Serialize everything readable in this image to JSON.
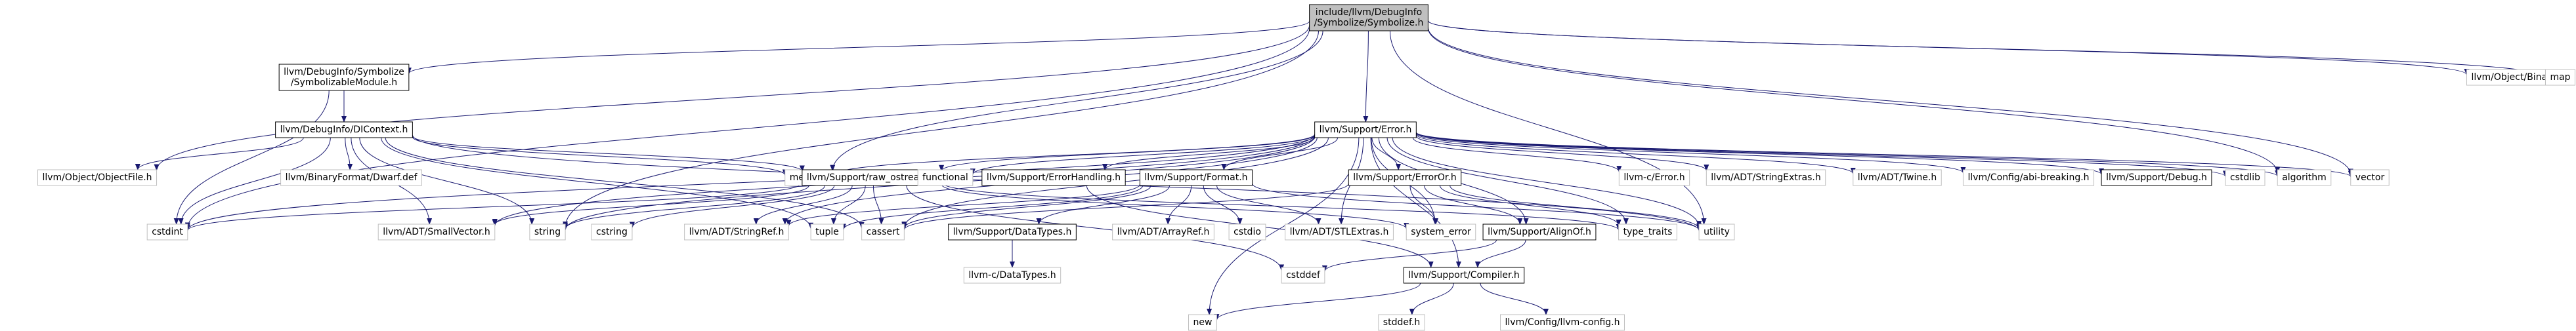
{
  "graph": {
    "nodes": {
      "symbolize_h": {
        "label": [
          "include/llvm/DebugInfo",
          "/Symbolize/Symbolize.h"
        ],
        "style": "root"
      },
      "symbolizable_module_h": {
        "label": [
          "llvm/DebugInfo/Symbolize",
          "/SymbolizableModule.h"
        ],
        "style": "linked"
      },
      "dicontext_h": {
        "label": [
          "llvm/DebugInfo/DIContext.h"
        ],
        "style": "linked"
      },
      "error_h": {
        "label": [
          "llvm/Support/Error.h"
        ],
        "style": "linked"
      },
      "object_file_h": {
        "label": [
          "llvm/Object/ObjectFile.h"
        ],
        "style": "plain"
      },
      "binary_h": {
        "label": [
          "llvm/Object/Binary.h"
        ],
        "style": "plain"
      },
      "map": {
        "label": [
          "map"
        ],
        "style": "plain"
      },
      "cstdint": {
        "label": [
          "cstdint"
        ],
        "style": "plain"
      },
      "dwarf_def": {
        "label": [
          "llvm/BinaryFormat/Dwarf.def"
        ],
        "style": "plain"
      },
      "memory": {
        "label": [
          "memory"
        ],
        "style": "plain"
      },
      "raw_ostream_h": {
        "label": [
          "llvm/Support/raw_ostream.h"
        ],
        "style": "linked"
      },
      "small_vector_h": {
        "label": [
          "llvm/ADT/SmallVector.h"
        ],
        "style": "plain"
      },
      "string": {
        "label": [
          "string"
        ],
        "style": "plain"
      },
      "cstring": {
        "label": [
          "cstring"
        ],
        "style": "plain"
      },
      "string_ref_h": {
        "label": [
          "llvm/ADT/StringRef.h"
        ],
        "style": "plain"
      },
      "tuple": {
        "label": [
          "tuple"
        ],
        "style": "plain"
      },
      "cassert": {
        "label": [
          "cassert"
        ],
        "style": "plain"
      },
      "functional": {
        "label": [
          "functional"
        ],
        "style": "plain"
      },
      "error_handling_h": {
        "label": [
          "llvm/Support/ErrorHandling.h"
        ],
        "style": "linked"
      },
      "format_h": {
        "label": [
          "llvm/Support/Format.h"
        ],
        "style": "linked"
      },
      "data_types_h": {
        "label": [
          "llvm/Support/DataTypes.h"
        ],
        "style": "linked"
      },
      "c_data_types_h": {
        "label": [
          "llvm-c/DataTypes.h"
        ],
        "style": "plain"
      },
      "array_ref_h": {
        "label": [
          "llvm/ADT/ArrayRef.h"
        ],
        "style": "plain"
      },
      "cstdio": {
        "label": [
          "cstdio"
        ],
        "style": "plain"
      },
      "stl_extras_h": {
        "label": [
          "llvm/ADT/STLExtras.h"
        ],
        "style": "plain"
      },
      "error_or_h": {
        "label": [
          "llvm/Support/ErrorOr.h"
        ],
        "style": "linked"
      },
      "system_error": {
        "label": [
          "system_error"
        ],
        "style": "plain"
      },
      "align_of_h": {
        "label": [
          "llvm/Support/AlignOf.h"
        ],
        "style": "linked"
      },
      "type_traits": {
        "label": [
          "type_traits"
        ],
        "style": "plain"
      },
      "utility": {
        "label": [
          "utility"
        ],
        "style": "plain"
      },
      "c_error_h": {
        "label": [
          "llvm-c/Error.h"
        ],
        "style": "plain"
      },
      "string_extras_h": {
        "label": [
          "llvm/ADT/StringExtras.h"
        ],
        "style": "plain"
      },
      "twine_h": {
        "label": [
          "llvm/ADT/Twine.h"
        ],
        "style": "plain"
      },
      "abi_breaking_h": {
        "label": [
          "llvm/Config/abi-breaking.h"
        ],
        "style": "plain"
      },
      "debug_h": {
        "label": [
          "llvm/Support/Debug.h"
        ],
        "style": "linked"
      },
      "cstdlib": {
        "label": [
          "cstdlib"
        ],
        "style": "plain"
      },
      "algorithm": {
        "label": [
          "algorithm"
        ],
        "style": "plain"
      },
      "vector": {
        "label": [
          "vector"
        ],
        "style": "plain"
      },
      "compiler_h": {
        "label": [
          "llvm/Support/Compiler.h"
        ],
        "style": "linked"
      },
      "cstddef": {
        "label": [
          "cstddef"
        ],
        "style": "plain"
      },
      "new": {
        "label": [
          "new"
        ],
        "style": "plain"
      },
      "stddef_h": {
        "label": [
          "stddef.h"
        ],
        "style": "plain"
      },
      "llvm_config_h": {
        "label": [
          "llvm/Config/llvm-config.h"
        ],
        "style": "plain"
      }
    },
    "edges": [
      [
        "symbolize_h",
        "symbolizable_module_h"
      ],
      [
        "symbolize_h",
        "object_file_h"
      ],
      [
        "symbolize_h",
        "error_h"
      ],
      [
        "symbolize_h",
        "binary_h"
      ],
      [
        "symbolize_h",
        "map"
      ],
      [
        "symbolize_h",
        "cstdint"
      ],
      [
        "symbolize_h",
        "memory"
      ],
      [
        "symbolize_h",
        "string"
      ],
      [
        "symbolize_h",
        "utility"
      ],
      [
        "symbolize_h",
        "vector"
      ],
      [
        "symbolize_h",
        "algorithm"
      ],
      [
        "symbolizable_module_h",
        "dicontext_h"
      ],
      [
        "symbolizable_module_h",
        "cstdint"
      ],
      [
        "dicontext_h",
        "object_file_h"
      ],
      [
        "dicontext_h",
        "cstdint"
      ],
      [
        "dicontext_h",
        "dwarf_def"
      ],
      [
        "dicontext_h",
        "memory"
      ],
      [
        "dicontext_h",
        "raw_ostream_h"
      ],
      [
        "dicontext_h",
        "small_vector_h"
      ],
      [
        "dicontext_h",
        "string"
      ],
      [
        "dicontext_h",
        "tuple"
      ],
      [
        "dicontext_h",
        "cassert"
      ],
      [
        "dicontext_h",
        "utility"
      ],
      [
        "raw_ostream_h",
        "small_vector_h"
      ],
      [
        "raw_ostream_h",
        "string_ref_h"
      ],
      [
        "raw_ostream_h",
        "cassert"
      ],
      [
        "raw_ostream_h",
        "cstddef"
      ],
      [
        "raw_ostream_h",
        "cstdint"
      ],
      [
        "raw_ostream_h",
        "cstring"
      ],
      [
        "raw_ostream_h",
        "string"
      ],
      [
        "raw_ostream_h",
        "system_error"
      ],
      [
        "raw_ostream_h",
        "type_traits"
      ],
      [
        "raw_ostream_h",
        "tuple"
      ],
      [
        "error_h",
        "small_vector_h"
      ],
      [
        "error_h",
        "string_ref_h"
      ],
      [
        "error_h",
        "raw_ostream_h"
      ],
      [
        "error_h",
        "functional"
      ],
      [
        "error_h",
        "error_handling_h"
      ],
      [
        "error_h",
        "format_h"
      ],
      [
        "error_h",
        "error_or_h"
      ],
      [
        "error_h",
        "align_of_h"
      ],
      [
        "error_h",
        "c_error_h"
      ],
      [
        "error_h",
        "string_extras_h"
      ],
      [
        "error_h",
        "twine_h"
      ],
      [
        "error_h",
        "abi_breaking_h"
      ],
      [
        "error_h",
        "compiler_h"
      ],
      [
        "error_h",
        "debug_h"
      ],
      [
        "error_h",
        "cassert"
      ],
      [
        "error_h",
        "cstdint"
      ],
      [
        "error_h",
        "cstdlib"
      ],
      [
        "error_h",
        "memory"
      ],
      [
        "error_h",
        "new"
      ],
      [
        "error_h",
        "string"
      ],
      [
        "error_h",
        "system_error"
      ],
      [
        "error_h",
        "type_traits"
      ],
      [
        "error_h",
        "utility"
      ],
      [
        "error_h",
        "vector"
      ],
      [
        "error_h",
        "stl_extras_h"
      ],
      [
        "error_h",
        "algorithm"
      ],
      [
        "error_handling_h",
        "compiler_h"
      ],
      [
        "format_h",
        "array_ref_h"
      ],
      [
        "format_h",
        "stl_extras_h"
      ],
      [
        "format_h",
        "string_ref_h"
      ],
      [
        "format_h",
        "data_types_h"
      ],
      [
        "format_h",
        "cassert"
      ],
      [
        "format_h",
        "cstdio"
      ],
      [
        "format_h",
        "tuple"
      ],
      [
        "format_h",
        "utility"
      ],
      [
        "data_types_h",
        "c_data_types_h"
      ],
      [
        "error_or_h",
        "align_of_h"
      ],
      [
        "error_or_h",
        "cassert"
      ],
      [
        "error_or_h",
        "system_error"
      ],
      [
        "error_or_h",
        "type_traits"
      ],
      [
        "error_or_h",
        "utility"
      ],
      [
        "align_of_h",
        "compiler_h"
      ],
      [
        "align_of_h",
        "cstddef"
      ],
      [
        "compiler_h",
        "new"
      ],
      [
        "compiler_h",
        "stddef_h"
      ],
      [
        "compiler_h",
        "llvm_config_h"
      ]
    ]
  }
}
